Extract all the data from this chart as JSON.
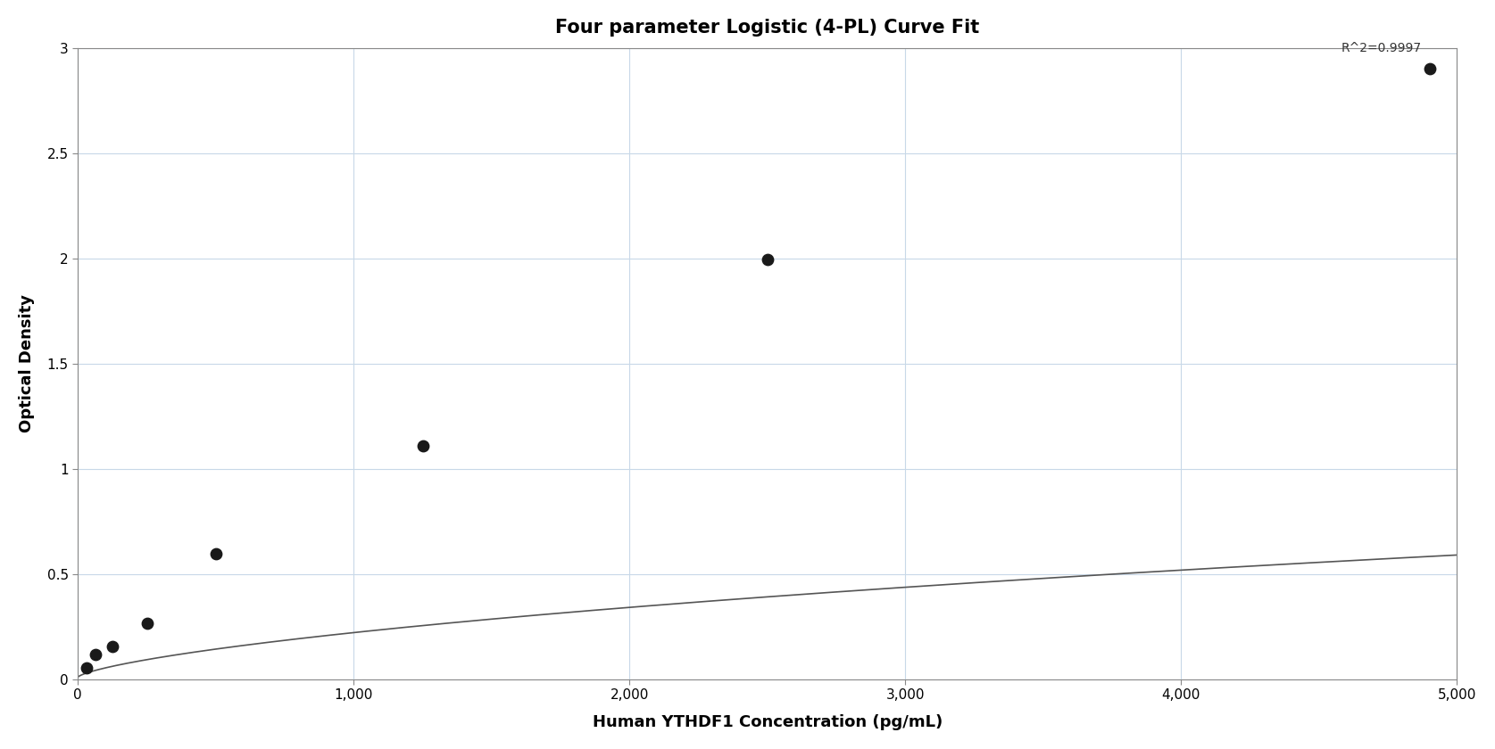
{
  "title": "Four parameter Logistic (4-PL) Curve Fit",
  "xlabel": "Human YTHDF1 Concentration (pg/mL)",
  "ylabel": "Optical Density",
  "r_squared": "R^2=0.9997",
  "data_points_x": [
    31.25,
    62.5,
    125,
    250,
    500,
    1250,
    2500,
    4900
  ],
  "data_points_y": [
    0.055,
    0.12,
    0.155,
    0.265,
    0.595,
    1.11,
    1.995,
    2.9
  ],
  "xlim": [
    0,
    5000
  ],
  "ylim": [
    0,
    3.0
  ],
  "xticks": [
    0,
    1000,
    2000,
    3000,
    4000,
    5000
  ],
  "xtick_labels": [
    "0",
    "1,000",
    "2,000",
    "3,000",
    "4,000",
    "5,000"
  ],
  "yticks": [
    0,
    0.5,
    1.0,
    1.5,
    2.0,
    2.5,
    3.0
  ],
  "ytick_labels": [
    "0",
    "0.5",
    "1",
    "1.5",
    "2",
    "2.5",
    "3"
  ],
  "line_color": "#555555",
  "dot_color": "#1a1a1a",
  "background_color": "#ffffff",
  "grid_color": "#c8d8e8",
  "title_fontsize": 15,
  "label_fontsize": 13,
  "tick_fontsize": 11,
  "annotation_fontsize": 10,
  "dot_size": 80
}
